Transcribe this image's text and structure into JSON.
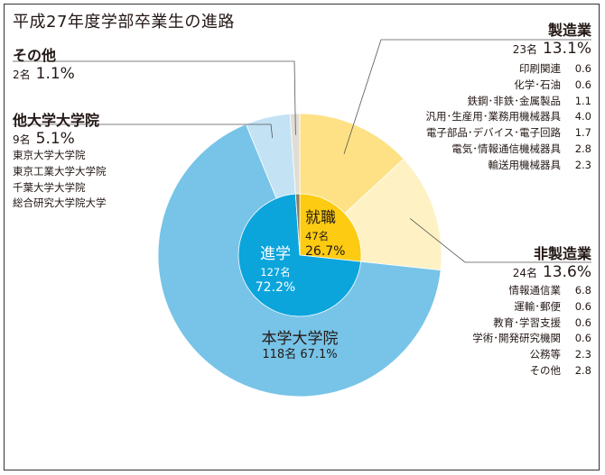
{
  "title": "平成27年度学部卒業生の進路",
  "colors": {
    "seizo": "#fde184",
    "hiseizo": "#fef2c5",
    "shushoku": "#fccb12",
    "honin": "#77c4e8",
    "tainin": "#c3e2f4",
    "other": "#e0ddd6",
    "shingaku": "#0ba5dc",
    "line": "#555555"
  },
  "chart_data": {
    "type": "pie",
    "title": "平成27年度学部卒業生の進路",
    "outer": [
      {
        "name": "製造業",
        "count": "23名",
        "pct": "13.1%",
        "value": 13.1
      },
      {
        "name": "非製造業",
        "count": "24名",
        "pct": "13.6%",
        "value": 13.6
      },
      {
        "name": "本学大学院",
        "count": "118名",
        "pct": "67.1%",
        "value": 67.1
      },
      {
        "name": "他大学大学院",
        "count": "9名",
        "pct": "5.1%",
        "value": 5.1
      },
      {
        "name": "その他",
        "count": "2名",
        "pct": "1.1%",
        "value": 1.1
      }
    ],
    "inner": [
      {
        "name": "就職",
        "count": "47名",
        "pct": "26.7%",
        "value": 26.7
      },
      {
        "name": "進学",
        "count": "127名",
        "pct": "72.2%",
        "value": 72.2
      },
      {
        "name": "その他",
        "value": 1.1
      }
    ],
    "seizo_breakdown": [
      {
        "label": "印刷関連",
        "value": "0.6"
      },
      {
        "label": "化学･石油",
        "value": "0.6"
      },
      {
        "label": "鉄鋼･非鉄･金属製品",
        "value": "1.1"
      },
      {
        "label": "汎用･生産用･業務用機械器具",
        "value": "4.0"
      },
      {
        "label": "電子部品･デバイス･電子回路",
        "value": "1.7"
      },
      {
        "label": "電気･情報通信機械器具",
        "value": "2.8"
      },
      {
        "label": "輸送用機械器具",
        "value": "2.3"
      }
    ],
    "hiseizo_breakdown": [
      {
        "label": "情報通信業",
        "value": "6.8"
      },
      {
        "label": "運輸･郵便",
        "value": "0.6"
      },
      {
        "label": "教育･学習支援",
        "value": "0.6"
      },
      {
        "label": "学術･開発研究機関",
        "value": "0.6"
      },
      {
        "label": "公務等",
        "value": "2.3"
      },
      {
        "label": "その他",
        "value": "2.8"
      }
    ],
    "tainin_schools": [
      "東京大学大学院",
      "東京工業大学大学院",
      "千葉大学大学院",
      "総合研究大学院大学"
    ]
  }
}
